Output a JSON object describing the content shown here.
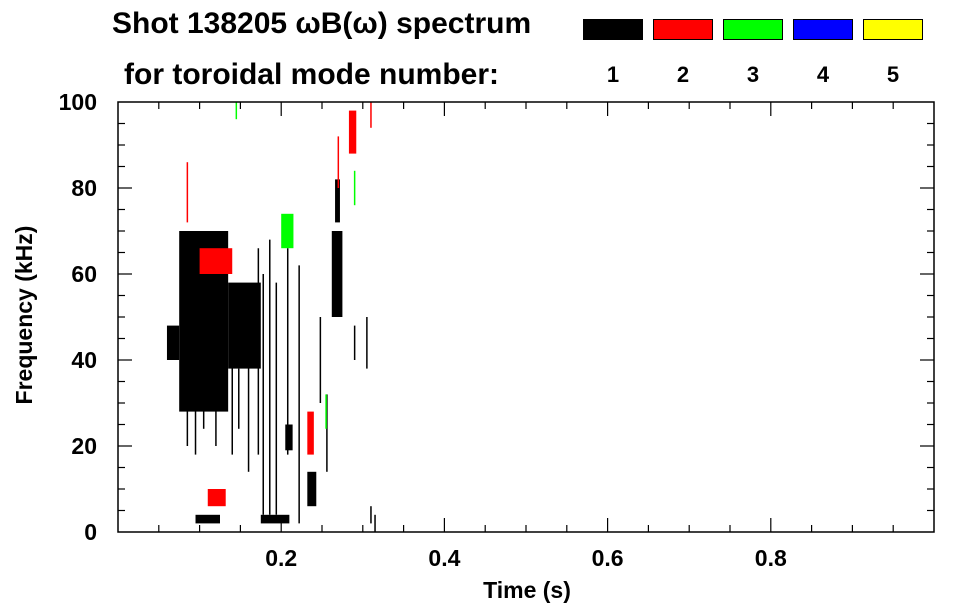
{
  "header": {
    "title_line1": "Shot 138205 ωB(ω) spectrum",
    "title_line2": "for toroidal mode number:"
  },
  "legend": {
    "entries": [
      {
        "label": "1",
        "color": "#000000"
      },
      {
        "label": "2",
        "color": "#ff0000"
      },
      {
        "label": "3",
        "color": "#00ff00"
      },
      {
        "label": "4",
        "color": "#0000ff"
      },
      {
        "label": "5",
        "color": "#ffff00"
      }
    ]
  },
  "chart_data": {
    "type": "heatmap",
    "xlabel": "Time (s)",
    "ylabel": "Frequency (kHz)",
    "xlim": [
      0.0,
      1.0
    ],
    "ylim": [
      0,
      100
    ],
    "xticks": [
      {
        "value": 0.2,
        "label": "0.2"
      },
      {
        "value": 0.4,
        "label": "0.4"
      },
      {
        "value": 0.6,
        "label": "0.6"
      },
      {
        "value": 0.8,
        "label": "0.8"
      }
    ],
    "yticks": [
      {
        "value": 0,
        "label": "0"
      },
      {
        "value": 20,
        "label": "20"
      },
      {
        "value": 40,
        "label": "40"
      },
      {
        "value": 60,
        "label": "60"
      },
      {
        "value": 80,
        "label": "80"
      },
      {
        "value": 100,
        "label": "100"
      }
    ],
    "grid": false,
    "regions": [
      {
        "mode": 1,
        "t0": 0.075,
        "t1": 0.135,
        "f0": 28,
        "f1": 70
      },
      {
        "mode": 1,
        "t0": 0.135,
        "t1": 0.175,
        "f0": 38,
        "f1": 58
      },
      {
        "mode": 1,
        "t0": 0.06,
        "t1": 0.075,
        "f0": 40,
        "f1": 48
      },
      {
        "mode": 1,
        "t0": 0.262,
        "t1": 0.275,
        "f0": 50,
        "f1": 70
      },
      {
        "mode": 1,
        "t0": 0.266,
        "t1": 0.272,
        "f0": 72,
        "f1": 82
      },
      {
        "mode": 1,
        "t0": 0.232,
        "t1": 0.243,
        "f0": 6,
        "f1": 14
      },
      {
        "mode": 1,
        "t0": 0.205,
        "t1": 0.214,
        "f0": 19,
        "f1": 25
      },
      {
        "mode": 1,
        "t0": 0.175,
        "t1": 0.21,
        "f0": 2,
        "f1": 4
      },
      {
        "mode": 1,
        "t0": 0.095,
        "t1": 0.125,
        "f0": 2,
        "f1": 4
      },
      {
        "mode": 2,
        "t0": 0.1,
        "t1": 0.14,
        "f0": 60,
        "f1": 66
      },
      {
        "mode": 2,
        "t0": 0.232,
        "t1": 0.24,
        "f0": 18,
        "f1": 28
      },
      {
        "mode": 2,
        "t0": 0.283,
        "t1": 0.292,
        "f0": 88,
        "f1": 98
      },
      {
        "mode": 2,
        "t0": 0.11,
        "t1": 0.132,
        "f0": 6,
        "f1": 10
      },
      {
        "mode": 3,
        "t0": 0.2,
        "t1": 0.215,
        "f0": 66,
        "f1": 74
      }
    ],
    "streaks": [
      {
        "mode": 1,
        "t": 0.085,
        "f0": 20,
        "f1": 42
      },
      {
        "mode": 1,
        "t": 0.095,
        "f0": 18,
        "f1": 40
      },
      {
        "mode": 1,
        "t": 0.105,
        "f0": 24,
        "f1": 44
      },
      {
        "mode": 1,
        "t": 0.12,
        "f0": 20,
        "f1": 38
      },
      {
        "mode": 1,
        "t": 0.14,
        "f0": 18,
        "f1": 40
      },
      {
        "mode": 1,
        "t": 0.148,
        "f0": 24,
        "f1": 38
      },
      {
        "mode": 1,
        "t": 0.16,
        "f0": 14,
        "f1": 42
      },
      {
        "mode": 1,
        "t": 0.172,
        "f0": 18,
        "f1": 66
      },
      {
        "mode": 1,
        "t": 0.178,
        "f0": 4,
        "f1": 60
      },
      {
        "mode": 1,
        "t": 0.186,
        "f0": 4,
        "f1": 68
      },
      {
        "mode": 1,
        "t": 0.194,
        "f0": 4,
        "f1": 58
      },
      {
        "mode": 1,
        "t": 0.208,
        "f0": 18,
        "f1": 66
      },
      {
        "mode": 1,
        "t": 0.222,
        "f0": 2,
        "f1": 62
      },
      {
        "mode": 1,
        "t": 0.248,
        "f0": 30,
        "f1": 50
      },
      {
        "mode": 1,
        "t": 0.256,
        "f0": 14,
        "f1": 32
      },
      {
        "mode": 1,
        "t": 0.29,
        "f0": 40,
        "f1": 48
      },
      {
        "mode": 1,
        "t": 0.305,
        "f0": 38,
        "f1": 50
      },
      {
        "mode": 1,
        "t": 0.31,
        "f0": 2,
        "f1": 6
      },
      {
        "mode": 1,
        "t": 0.315,
        "f0": 0,
        "f1": 4
      },
      {
        "mode": 2,
        "t": 0.085,
        "f0": 72,
        "f1": 86
      },
      {
        "mode": 2,
        "t": 0.27,
        "f0": 80,
        "f1": 92
      },
      {
        "mode": 2,
        "t": 0.31,
        "f0": 94,
        "f1": 100
      },
      {
        "mode": 3,
        "t": 0.255,
        "f0": 24,
        "f1": 32
      },
      {
        "mode": 3,
        "t": 0.29,
        "f0": 76,
        "f1": 84
      },
      {
        "mode": 3,
        "t": 0.145,
        "f0": 96,
        "f1": 100
      }
    ]
  }
}
